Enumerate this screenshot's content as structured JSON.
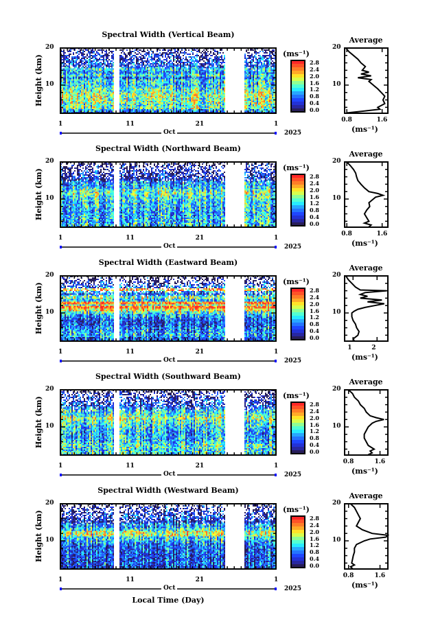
{
  "chart_data": {
    "type": "heatmap",
    "xlabel": "Local Time (Day)",
    "month_label": "Oct",
    "year_label": "2025",
    "x_tick_labels": [
      "1",
      "11",
      "21",
      "1"
    ],
    "xlim_days": [
      1,
      32
    ],
    "data_gaps_days": [
      [
        8.7,
        9.4
      ],
      [
        24.6,
        27.4
      ]
    ],
    "ylabel": "Height (km)",
    "y_tick_labels": [
      "20",
      "10"
    ],
    "ylim_km": [
      2.4,
      20
    ],
    "colorbar": {
      "label": "(ms⁻¹)",
      "tick_labels": [
        "2.8",
        "2.4",
        "2.0",
        "1.6",
        "1.2",
        "0.8",
        "0.4",
        "0.0"
      ],
      "range": [
        0,
        3.0
      ]
    },
    "profile_title": "Average",
    "profile_xlabel": "(ms⁻¹)",
    "panels": [
      {
        "title": "Spectral Width (Vertical Beam)",
        "profile_xticks": [
          "0.8",
          "1.6"
        ],
        "profile_tick_values": [
          0.8,
          1.6
        ],
        "profile_xlim": [
          0.75,
          1.73
        ],
        "profile": {
          "height": [
            20,
            19,
            18,
            17,
            16,
            15,
            14,
            13.5,
            13,
            12.5,
            12,
            11.5,
            11,
            10,
            9,
            8,
            7,
            6,
            5,
            4,
            3.5,
            3,
            2.5
          ],
          "value": [
            0.78,
            0.85,
            0.95,
            1.05,
            1.12,
            1.22,
            1.15,
            1.3,
            1.12,
            1.35,
            1.05,
            1.35,
            1.3,
            1.4,
            1.5,
            1.58,
            1.66,
            1.62,
            1.66,
            1.5,
            1.55,
            1.2,
            0.8
          ]
        }
      },
      {
        "title": "Spectral Width (Northward Beam)",
        "profile_xticks": [
          "0.8",
          "1.6"
        ],
        "profile_tick_values": [
          0.8,
          1.6
        ],
        "profile_xlim": [
          0.75,
          1.73
        ],
        "profile": {
          "height": [
            20,
            19,
            18,
            17,
            16,
            15,
            14,
            13,
            12,
            11.5,
            11,
            10.5,
            10,
            9,
            8,
            7,
            6,
            5,
            4,
            3.5,
            3,
            2.5
          ],
          "value": [
            0.8,
            0.88,
            0.95,
            1.0,
            1.02,
            1.05,
            1.12,
            1.2,
            1.3,
            1.5,
            1.62,
            1.45,
            1.4,
            1.3,
            1.32,
            1.25,
            1.2,
            1.25,
            1.3,
            1.2,
            1.35,
            1.3
          ]
        }
      },
      {
        "title": "Spectral Width (Eastward Beam)",
        "profile_xticks": [
          "1",
          "2"
        ],
        "profile_tick_values": [
          1,
          2
        ],
        "profile_xlim": [
          0.65,
          2.45
        ],
        "profile": {
          "height": [
            20,
            19,
            18,
            17,
            16.2,
            16,
            15.5,
            15,
            14.5,
            14,
            13.5,
            13,
            12.5,
            12,
            11.5,
            11,
            10.5,
            10,
            9,
            8,
            7,
            6,
            5,
            4,
            3,
            2.5
          ],
          "value": [
            0.7,
            0.8,
            0.95,
            1.1,
            1.3,
            2.4,
            1.5,
            1.3,
            1.6,
            1.3,
            2.2,
            1.6,
            2.3,
            1.9,
            1.5,
            1.2,
            1.05,
            0.95,
            0.95,
            1.0,
            1.1,
            1.15,
            1.25,
            1.2,
            1.0,
            1.05
          ]
        }
      },
      {
        "title": "Spectral Width (Southward Beam)",
        "profile_xticks": [
          "0.8",
          "1.6"
        ],
        "profile_tick_values": [
          0.8,
          1.6
        ],
        "profile_xlim": [
          0.7,
          1.8
        ],
        "profile": {
          "height": [
            20,
            19,
            18,
            17,
            16,
            15,
            14,
            13,
            12.5,
            12,
            11.5,
            11,
            10,
            9,
            8,
            7,
            6,
            5,
            4,
            3.5,
            3,
            2.5
          ],
          "value": [
            0.8,
            0.9,
            0.95,
            1.05,
            1.1,
            1.2,
            1.25,
            1.35,
            1.5,
            1.7,
            1.5,
            1.4,
            1.3,
            1.25,
            1.2,
            1.2,
            1.25,
            1.3,
            1.45,
            1.35,
            1.4,
            1.3
          ]
        }
      },
      {
        "title": "Spectral Width (Westward Beam)",
        "profile_xticks": [
          "0.8",
          "1.6"
        ],
        "profile_tick_values": [
          0.8,
          1.6
        ],
        "profile_xlim": [
          0.7,
          1.8
        ],
        "profile": {
          "height": [
            20,
            19,
            18,
            17,
            16,
            15,
            14,
            13,
            12,
            11.5,
            11,
            10.5,
            10,
            9,
            8,
            7,
            6,
            5,
            4,
            3.5,
            3,
            2.5
          ],
          "value": [
            0.85,
            0.95,
            1.0,
            1.05,
            1.1,
            1.05,
            1.0,
            1.15,
            1.4,
            1.8,
            1.75,
            1.35,
            1.2,
            1.0,
            0.95,
            0.95,
            0.92,
            0.9,
            0.88,
            0.95,
            0.85,
            0.9
          ]
        }
      }
    ]
  }
}
